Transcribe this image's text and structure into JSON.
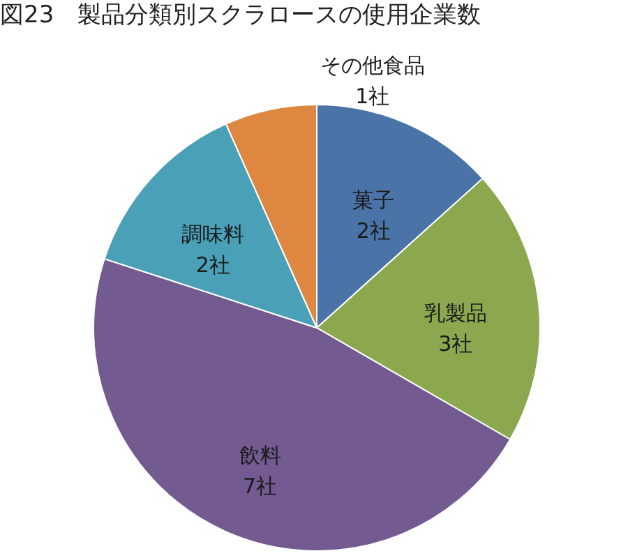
{
  "chart_data": {
    "type": "pie",
    "title": "図23　製品分類別スクラロースの使用企業数",
    "categories": [
      "菓子",
      "乳製品",
      "飲料",
      "調味料",
      "その他食品"
    ],
    "values": [
      2,
      3,
      7,
      2,
      1
    ],
    "value_labels": [
      "2社",
      "3社",
      "7社",
      "2社",
      "1社"
    ],
    "colors": [
      "#4a73a8",
      "#8ba84f",
      "#735a91",
      "#4aa0b7",
      "#dd8740"
    ]
  }
}
